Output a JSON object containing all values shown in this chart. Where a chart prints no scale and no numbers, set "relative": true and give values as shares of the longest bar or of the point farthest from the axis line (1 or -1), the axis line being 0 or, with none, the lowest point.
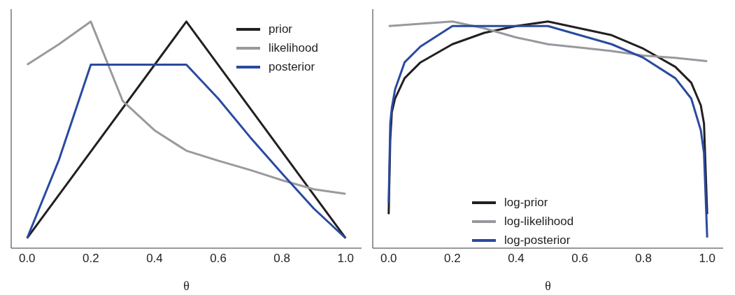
{
  "chart_data": [
    {
      "type": "line",
      "relative": true,
      "xlabel": "θ",
      "xlim": [
        -0.05,
        1.05
      ],
      "xticks": [
        {
          "value": 0,
          "label": "0.0"
        },
        {
          "value": 0.2,
          "label": "0.2"
        },
        {
          "value": 0.4,
          "label": "0.4"
        },
        {
          "value": 0.6,
          "label": "0.6"
        },
        {
          "value": 0.8,
          "label": "0.8"
        },
        {
          "value": 1,
          "label": "1.0"
        }
      ],
      "legend": "top right",
      "marker": "none",
      "grid": false,
      "tick_labels": "x",
      "series": [
        {
          "name": "prior",
          "color": "#231f20",
          "x": [
            0,
            0.5,
            1
          ],
          "values": [
            0.044,
            1,
            0.044
          ]
        },
        {
          "name": "likelihood",
          "color": "#9a9a9c",
          "x": [
            0,
            0.1,
            0.2,
            0.3,
            0.4,
            0.5,
            0.6,
            0.7,
            0.8,
            0.9,
            1
          ],
          "values": [
            0.81,
            0.9,
            1,
            0.65,
            0.52,
            0.43,
            0.386,
            0.345,
            0.3,
            0.26,
            0.24
          ]
        },
        {
          "name": "posterior",
          "color": "#2a4aa0",
          "x": [
            0,
            0.1,
            0.2,
            0.5,
            0.6,
            0.7,
            0.8,
            0.9,
            1
          ],
          "values": [
            0.044,
            0.39,
            0.81,
            0.81,
            0.66,
            0.49,
            0.33,
            0.175,
            0.044
          ]
        }
      ]
    },
    {
      "type": "line",
      "relative": true,
      "xlabel": "θ",
      "xlim": [
        -0.05,
        1.05
      ],
      "xticks": [
        {
          "value": 0,
          "label": "0.0"
        },
        {
          "value": 0.2,
          "label": "0.2"
        },
        {
          "value": 0.4,
          "label": "0.4"
        },
        {
          "value": 0.6,
          "label": "0.6"
        },
        {
          "value": 0.8,
          "label": "0.8"
        },
        {
          "value": 1,
          "label": "1.0"
        }
      ],
      "legend": "bottom",
      "marker": "none",
      "grid": false,
      "tick_labels": "x",
      "series": [
        {
          "name": "log-prior",
          "color": "#231f20",
          "x": [
            0,
            0.005,
            0.01,
            0.02,
            0.05,
            0.1,
            0.2,
            0.3,
            0.4,
            0.5,
            0.6,
            0.7,
            0.8,
            0.9,
            0.95,
            0.98,
            0.99,
            1
          ],
          "values": [
            0.15,
            0.48,
            0.6,
            0.66,
            0.75,
            0.82,
            0.9,
            0.95,
            0.98,
            1,
            0.97,
            0.94,
            0.88,
            0.8,
            0.73,
            0.63,
            0.55,
            0.15
          ]
        },
        {
          "name": "log-likelihood",
          "color": "#96999e",
          "x": [
            0,
            0.2,
            0.3,
            0.4,
            0.5,
            0.6,
            0.7,
            0.8,
            0.9,
            1
          ],
          "values": [
            0.98,
            1,
            0.97,
            0.93,
            0.9,
            0.885,
            0.87,
            0.85,
            0.84,
            0.825
          ]
        },
        {
          "name": "log-posterior",
          "color": "#2a4aa0",
          "x": [
            0,
            0.005,
            0.01,
            0.02,
            0.05,
            0.1,
            0.2,
            0.5,
            0.6,
            0.7,
            0.8,
            0.9,
            0.95,
            0.98,
            0.99,
            1
          ],
          "values": [
            0.2,
            0.55,
            0.62,
            0.7,
            0.82,
            0.89,
            0.98,
            0.98,
            0.94,
            0.9,
            0.84,
            0.75,
            0.66,
            0.52,
            0.42,
            0.047
          ]
        }
      ]
    }
  ]
}
